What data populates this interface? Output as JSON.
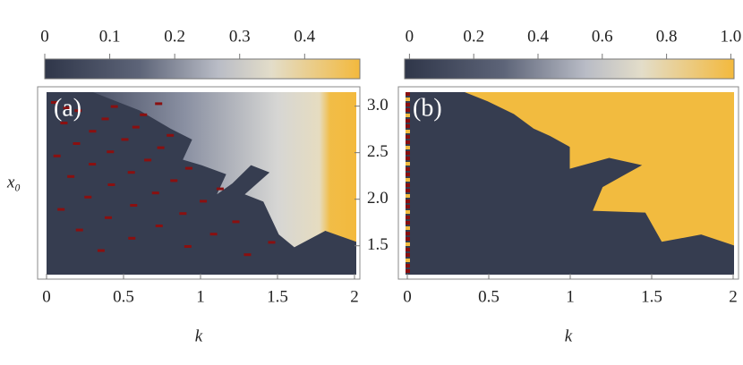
{
  "chart_data": [
    {
      "type": "heatmap",
      "label": "(a)",
      "xlabel": "k",
      "ylabel": "x₀",
      "xlim": [
        0,
        2
      ],
      "xticks": [
        0,
        0.5,
        1,
        1.5,
        2
      ],
      "ylim": [
        1.19,
        3.15
      ],
      "yticks": [
        {
          "value": 3,
          "label": "3.0"
        },
        2.5,
        {
          "value": 2,
          "label": "2.0"
        },
        1.5
      ],
      "colorbar": {
        "lim": [
          0,
          0.485
        ],
        "ticks": [
          0,
          0.1,
          0.2,
          0.3,
          0.4
        ]
      }
    },
    {
      "type": "heatmap",
      "label": "(b)",
      "xlabel": "k",
      "xlim": [
        0,
        2
      ],
      "xticks": [
        0,
        0.5,
        1,
        1.5,
        2
      ],
      "colorbar": {
        "lim": [
          -0.015,
          1.01
        ],
        "ticks": [
          0,
          0.2,
          0.4,
          0.6,
          0.8,
          {
            "value": 1,
            "label": "1.0"
          }
        ]
      }
    }
  ]
}
